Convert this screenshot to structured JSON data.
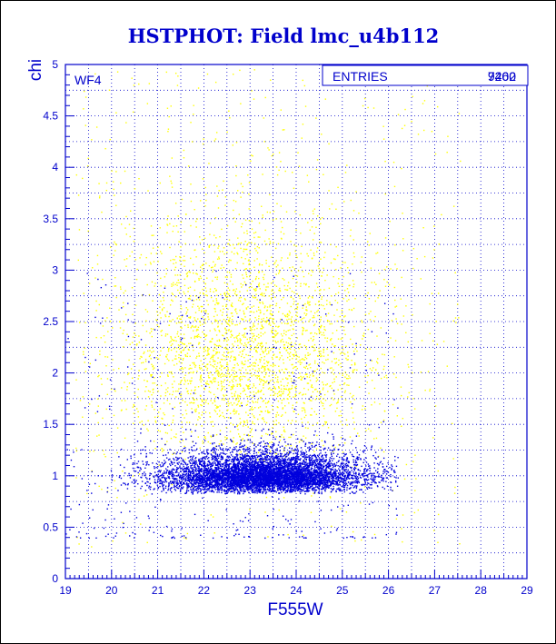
{
  "chart_data": {
    "type": "scatter",
    "title": "HSTPHOT: Field lmc_u4b112",
    "xlabel": "F555W",
    "ylabel": "chi",
    "xlim": [
      19,
      29
    ],
    "ylim": [
      0,
      5
    ],
    "grid": true,
    "x_ticks": [
      "19",
      "20",
      "21",
      "22",
      "23",
      "24",
      "25",
      "26",
      "27",
      "28",
      "29"
    ],
    "y_ticks": [
      "0",
      "0.5",
      "1",
      "1.5",
      "2",
      "2.5",
      "3",
      "3.5",
      "4",
      "4.5",
      "5"
    ],
    "panel_label": "WF4",
    "stats_box": {
      "label": "ENTRIES",
      "values": [
        "7402",
        "9260"
      ]
    },
    "series": [
      {
        "color": "#ffff00",
        "count_shown": 9260,
        "x_range": [
          19.2,
          27.6
        ],
        "y_range": [
          0.3,
          5.0
        ],
        "bulk": {
          "x_center": 23.0,
          "x_spread": 1.4,
          "y_center": 1.6,
          "y_spread": 0.9
        }
      },
      {
        "color": "#0000dd",
        "count_shown": 7402,
        "x_range": [
          19.0,
          26.2
        ],
        "y_range": [
          0.4,
          3.0
        ],
        "bulk": {
          "x_center": 23.3,
          "x_spread": 1.1,
          "y_center": 0.9,
          "y_spread": 0.15
        }
      }
    ]
  },
  "colors": {
    "axis": "#0000cc",
    "grid": "#0000cc",
    "title": "#0000cc",
    "faint_points": "#ffff00",
    "good_points": "#0000dd"
  }
}
